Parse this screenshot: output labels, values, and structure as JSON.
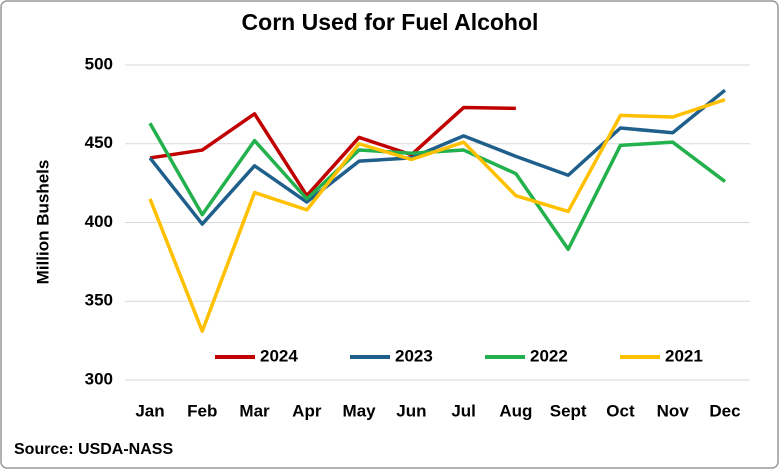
{
  "chart_data": {
    "type": "line",
    "title": "Corn Used for Fuel Alcohol",
    "y_label": "Million Bushels",
    "source": "Source: USDA-NASS",
    "categories": [
      "Jan",
      "Feb",
      "Mar",
      "Apr",
      "May",
      "Jun",
      "Jul",
      "Aug",
      "Sept",
      "Oct",
      "Nov",
      "Dec"
    ],
    "series": [
      {
        "name": "2024",
        "color": "#c00000",
        "values": [
          441,
          446,
          469,
          417,
          454,
          443,
          473,
          472.5,
          null,
          null,
          null,
          null
        ]
      },
      {
        "name": "2023",
        "color": "#1f5f8b",
        "values": [
          441,
          399,
          436,
          413,
          439,
          441,
          455,
          442,
          430,
          460,
          457,
          484
        ]
      },
      {
        "name": "2022",
        "color": "#22b14c",
        "values": [
          463,
          405,
          452,
          415,
          446,
          444,
          446,
          431,
          383,
          449,
          451,
          426
        ]
      },
      {
        "name": "2021",
        "color": "#ffc000",
        "values": [
          415,
          331,
          419,
          408,
          450,
          440,
          451,
          417,
          407,
          468,
          467,
          478
        ]
      }
    ],
    "ylim": [
      300,
      500
    ],
    "yticks": [
      300,
      350,
      400,
      450,
      500
    ],
    "grid": true,
    "legend": "bottom"
  }
}
